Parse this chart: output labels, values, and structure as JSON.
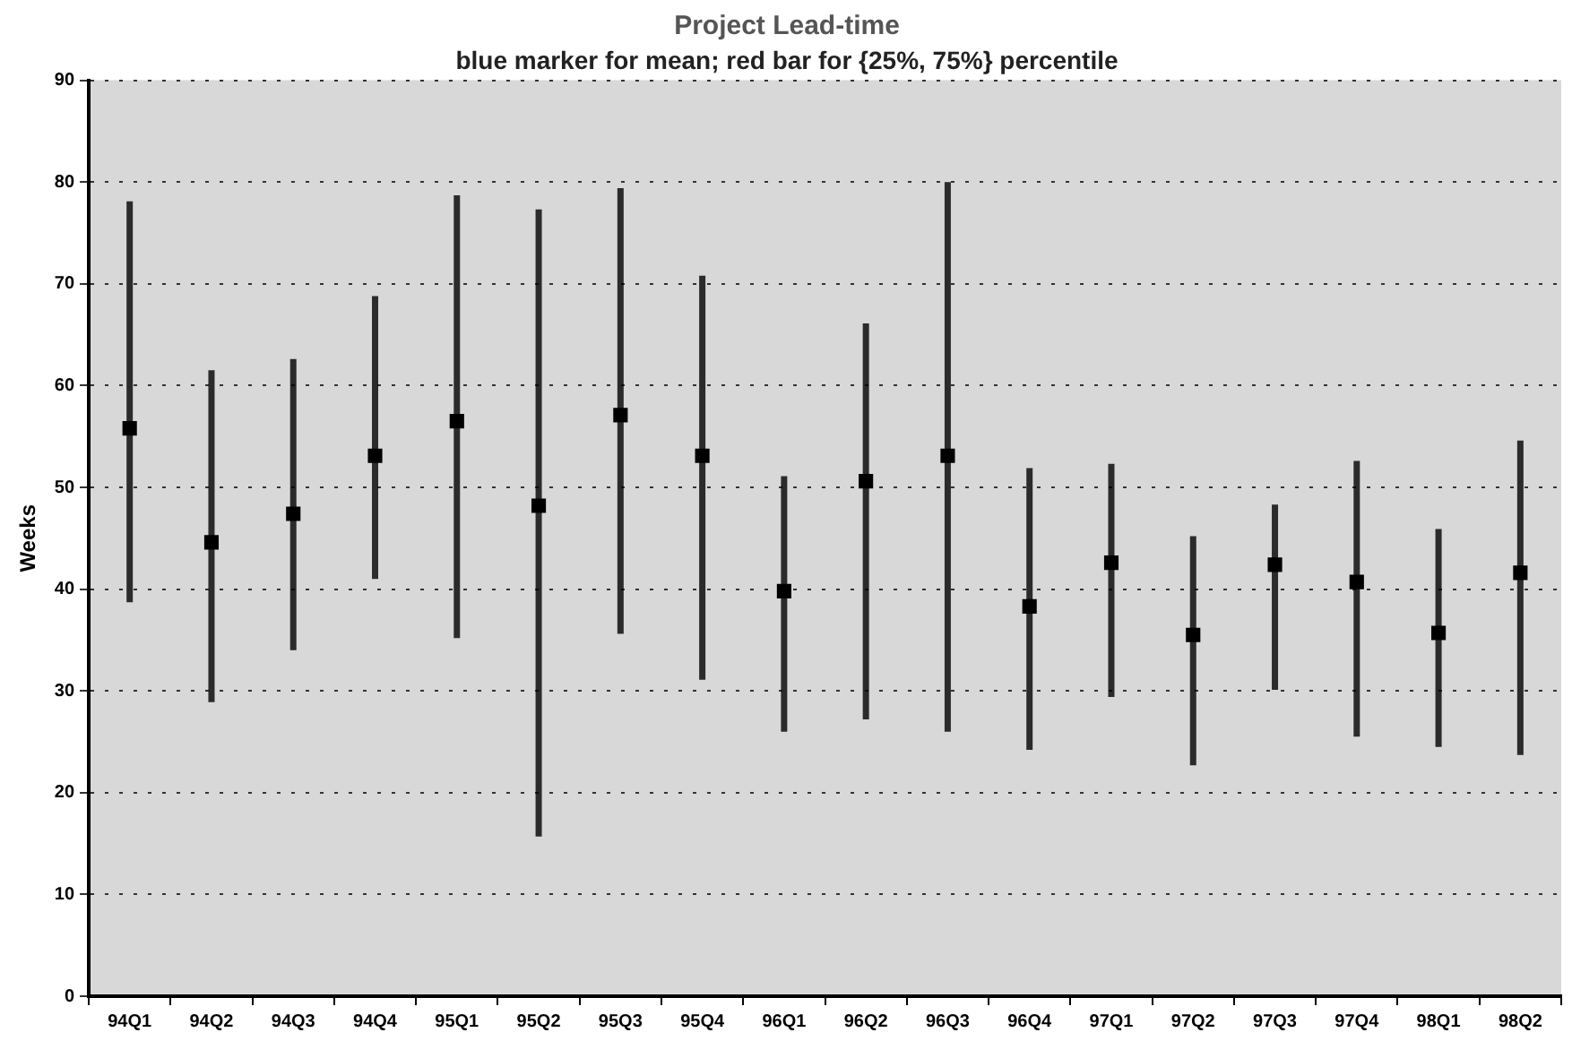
{
  "chart_data": {
    "type": "scatter",
    "title": "Project Lead-time",
    "subtitle": "blue marker for mean; red bar for {25%, 75%} percentile",
    "ylabel": "Weeks",
    "categories": [
      "94Q1",
      "94Q2",
      "94Q3",
      "94Q4",
      "95Q1",
      "95Q2",
      "95Q3",
      "95Q4",
      "96Q1",
      "96Q2",
      "96Q3",
      "96Q4",
      "97Q1",
      "97Q2",
      "97Q3",
      "97Q4",
      "98Q1",
      "98Q2"
    ],
    "series": [
      {
        "color": "#000000",
        "values": [
          55.8,
          44.6,
          47.4,
          53.1,
          56.5,
          48.2,
          57.1,
          53.1,
          39.8,
          50.6,
          53.1,
          38.3,
          42.6,
          35.5,
          42.4,
          40.7,
          35.7,
          41.6
        ],
        "errors": [
          [
            38.7,
            78.1
          ],
          [
            28.9,
            61.5
          ],
          [
            34.0,
            62.6
          ],
          [
            41.0,
            68.8
          ],
          [
            35.2,
            78.7
          ],
          [
            15.7,
            77.3
          ],
          [
            35.6,
            79.4
          ],
          [
            31.1,
            70.8
          ],
          [
            26.0,
            51.1
          ],
          [
            27.2,
            66.1
          ],
          [
            26.0,
            80.0
          ],
          [
            24.2,
            51.9
          ],
          [
            29.4,
            52.3
          ],
          [
            22.7,
            45.2
          ],
          [
            30.1,
            48.3
          ],
          [
            25.5,
            52.6
          ],
          [
            24.5,
            45.9
          ],
          [
            23.7,
            54.6
          ]
        ]
      }
    ],
    "ylim": [
      0,
      90
    ],
    "yticks": [
      0,
      10,
      20,
      30,
      40,
      50,
      60,
      70,
      80,
      90
    ],
    "grid": "y",
    "marker": "square",
    "legend": false
  }
}
